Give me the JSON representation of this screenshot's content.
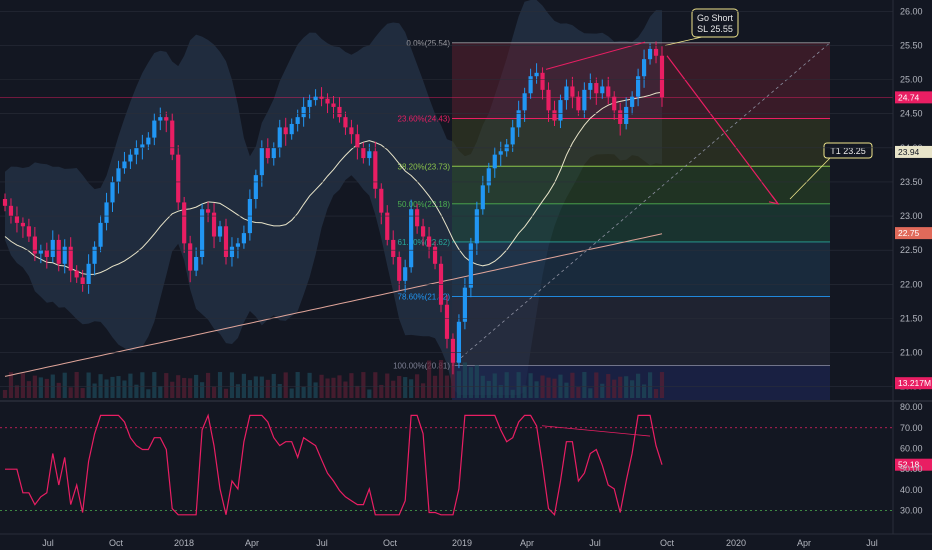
{
  "chart_data": {
    "type": "candlestick",
    "main_pane": {
      "y_axis_ticks": [
        "26.00",
        "25.50",
        "25.00",
        "24.50",
        "24.00",
        "23.50",
        "23.00",
        "22.50",
        "22.00",
        "21.50",
        "21.00",
        "20.50"
      ],
      "ylim": [
        20.45,
        26.05
      ],
      "price_tags": [
        {
          "id": "last",
          "label": "24.74",
          "value": 24.74,
          "color": "#e91e63"
        },
        {
          "id": "ma_fast",
          "label": "23.94",
          "value": 23.94,
          "color": "#e8e4c9"
        },
        {
          "id": "ma_slow",
          "label": "22.75",
          "value": 22.75,
          "color": "#e06a5a"
        },
        {
          "id": "volume",
          "label": "13.217M",
          "value": 20.55,
          "color": "#e91e63"
        }
      ],
      "fibonacci": [
        {
          "level": "0.0%",
          "price": 25.54,
          "label": "0.0%(25.54)",
          "color": "#9a9aa0"
        },
        {
          "level": "23.6%",
          "price": 24.43,
          "label": "23.60%(24.43)",
          "color": "#e91e63"
        },
        {
          "level": "38.2%",
          "price": 23.73,
          "label": "38.20%(23.73)",
          "color": "#8bc34a"
        },
        {
          "level": "50.0%",
          "price": 23.18,
          "label": "50.00%(23.18)",
          "color": "#4caf50"
        },
        {
          "level": "61.8%",
          "price": 22.62,
          "label": "61.80%(22.62)",
          "color": "#26a69a"
        },
        {
          "level": "78.6%",
          "price": 21.82,
          "label": "78.60%(21.82)",
          "color": "#2196f3"
        },
        {
          "level": "100%",
          "price": 20.81,
          "label": "100.00%(20.81)",
          "color": "#7e8094"
        }
      ],
      "annotations": [
        {
          "id": "go_short",
          "line1": "Go Short",
          "line2": "SL 25.55"
        },
        {
          "id": "target1",
          "line1": "T1 23.25"
        }
      ],
      "candles_close_series": [
        23.15,
        23.0,
        22.9,
        22.85,
        22.7,
        22.45,
        22.5,
        22.4,
        22.65,
        22.3,
        22.55,
        22.2,
        22.1,
        22.0,
        22.3,
        22.55,
        22.9,
        23.2,
        23.5,
        23.7,
        23.8,
        23.9,
        24.0,
        24.05,
        24.15,
        24.4,
        24.45,
        24.4,
        23.9,
        23.2,
        22.6,
        22.2,
        22.4,
        23.1,
        23.05,
        22.7,
        22.85,
        22.4,
        22.55,
        22.6,
        22.75,
        23.25,
        23.6,
        24.0,
        23.85,
        24.0,
        24.3,
        24.2,
        24.35,
        24.45,
        24.6,
        24.7,
        24.75,
        24.72,
        24.65,
        24.6,
        24.45,
        24.3,
        24.2,
        24.0,
        23.85,
        23.95,
        23.4,
        23.05,
        22.65,
        22.4,
        22.05,
        22.25,
        23.1,
        22.85,
        22.7,
        22.55,
        22.3,
        21.7,
        21.2,
        20.85,
        21.45,
        21.95,
        22.6,
        23.1,
        23.45,
        23.7,
        23.9,
        23.95,
        24.05,
        24.3,
        24.55,
        24.8,
        25.05,
        25.1,
        24.85,
        24.55,
        24.4,
        24.7,
        24.9,
        24.75,
        24.55,
        24.85,
        24.95,
        24.8,
        24.9,
        24.75,
        24.55,
        24.35,
        24.6,
        24.75,
        25.05,
        25.3,
        25.45,
        25.35,
        24.74
      ]
    },
    "rsi_pane": {
      "y_axis_ticks": [
        "80.00",
        "70.00",
        "60.00",
        "50.00",
        "40.00",
        "30.00"
      ],
      "ylim": [
        25,
        81
      ],
      "levels": [
        70,
        30
      ],
      "current_label": "52.18",
      "current": 52.18
    },
    "x_axis_ticks": [
      "Jul",
      "Oct",
      "2018",
      "Apr",
      "Jul",
      "Oct",
      "2019",
      "Apr",
      "Jul",
      "Oct",
      "2020",
      "Apr",
      "Jul"
    ]
  },
  "colors": {
    "background": "#131722",
    "up": "#2196f3",
    "down": "#e91e63",
    "rsi_line": "#e91e63",
    "grid": "#2a2e39"
  }
}
